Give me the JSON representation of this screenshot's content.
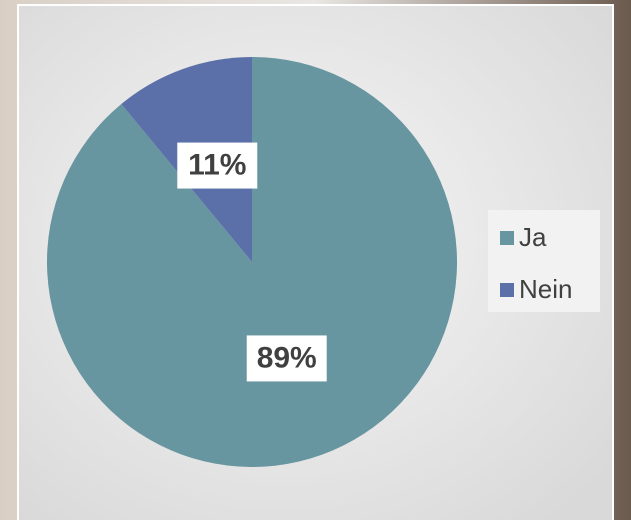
{
  "chart_data": {
    "type": "pie",
    "categories": [
      "Ja",
      "Nein"
    ],
    "values": [
      89,
      11
    ],
    "value_labels": [
      "89%",
      "11%"
    ],
    "colors": [
      "#6795a0",
      "#5b6fa8"
    ],
    "legend": "right"
  }
}
